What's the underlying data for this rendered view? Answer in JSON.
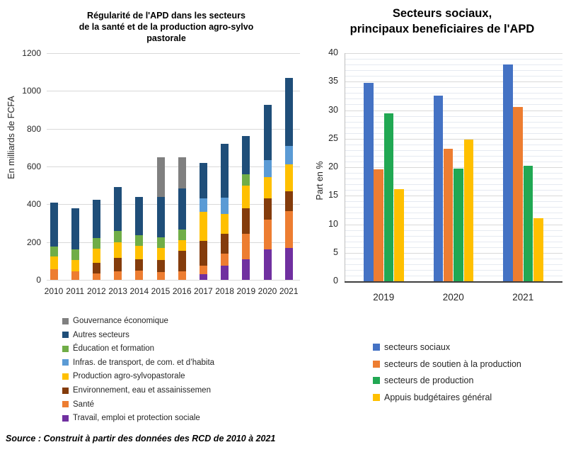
{
  "source_note": "Source : Construit à partir des données des RCD de 2010 à 2021",
  "colors": {
    "background": "#FFFFFF",
    "gridline_major": "#D9D9D9",
    "gridline_minor": "#E6EAF1",
    "axis_light": "#BFBFBF",
    "axis_dark": "#3F3F3F",
    "text": "#262626"
  },
  "chart_data": [
    {
      "id": "apd-secteurs-stacked",
      "type": "bar",
      "stacked": true,
      "title": "Régularité de l'APD dans les secteurs de la santé et de la production agro-sylvo pastorale",
      "title_lines": [
        "Régularité de l'APD dans les secteurs",
        "de la santé et de la production agro-sylvo",
        "pastorale"
      ],
      "xlabel": "",
      "ylabel": "En milliards de FCFA",
      "ylim": [
        0,
        1200
      ],
      "ytick_step": 200,
      "grid": "horizontal-major",
      "legend_position": "bottom-left-vertical",
      "categories": [
        "2010",
        "2011",
        "2012",
        "2013",
        "2014",
        "2015",
        "2016",
        "2017",
        "2018",
        "2019",
        "2020",
        "2021"
      ],
      "series": [
        {
          "name": "Travail, emploi et protection sociale",
          "color": "#7030A0",
          "values": [
            0,
            0,
            0,
            0,
            0,
            0,
            0,
            30,
            75,
            110,
            160,
            170
          ]
        },
        {
          "name": "Santé",
          "color": "#ED7D31",
          "values": [
            55,
            45,
            35,
            45,
            50,
            40,
            45,
            45,
            65,
            135,
            160,
            195
          ]
        },
        {
          "name": "Environnement, eau et assainissemen",
          "color": "#843C0C",
          "values": [
            0,
            0,
            55,
            70,
            60,
            65,
            110,
            130,
            105,
            135,
            110,
            105
          ]
        },
        {
          "name": "Production agro-sylvopastorale",
          "color": "#FFC000",
          "values": [
            70,
            60,
            75,
            85,
            70,
            65,
            55,
            155,
            105,
            120,
            115,
            140
          ]
        },
        {
          "name": "Infras. de transport, de com. et d’habita",
          "color": "#5B9BD5",
          "values": [
            0,
            0,
            0,
            0,
            0,
            0,
            0,
            70,
            85,
            0,
            90,
            100
          ]
        },
        {
          "name": "Éducation et formation",
          "color": "#70AD47",
          "values": [
            50,
            55,
            55,
            60,
            55,
            55,
            55,
            0,
            0,
            60,
            0,
            0
          ]
        },
        {
          "name": "Autres secteurs",
          "color": "#1F4E79",
          "values": [
            235,
            220,
            205,
            230,
            205,
            215,
            220,
            190,
            285,
            200,
            290,
            360
          ]
        },
        {
          "name": "Gouvernance économique",
          "color": "#808080",
          "values": [
            0,
            0,
            0,
            0,
            0,
            210,
            165,
            0,
            0,
            0,
            0,
            0
          ]
        }
      ],
      "legend_order": [
        7,
        6,
        5,
        4,
        3,
        2,
        1,
        0
      ],
      "totals": [
        410,
        380,
        425,
        490,
        440,
        650,
        650,
        620,
        720,
        760,
        925,
        1070
      ]
    },
    {
      "id": "secteurs-sociaux-grouped",
      "type": "bar",
      "stacked": false,
      "title": "Secteurs sociaux, principaux beneficiaires de l'APD",
      "title_lines": [
        "Secteurs sociaux,",
        "principaux beneficiaires de l'APD"
      ],
      "xlabel": "",
      "ylabel": "Part en %",
      "ylim": [
        0,
        40
      ],
      "ytick_step": 5,
      "minor_unit": 1,
      "grid": "horizontal-minor",
      "legend_position": "bottom-left-vertical",
      "categories": [
        "2019",
        "2020",
        "2021"
      ],
      "series": [
        {
          "name": "secteurs sociaux",
          "color": "#4472C4",
          "values": [
            34.8,
            32.6,
            38.0
          ]
        },
        {
          "name": "secteurs de soutien à la production",
          "color": "#ED7D31",
          "values": [
            19.6,
            23.2,
            30.5
          ]
        },
        {
          "name": "secteurs de production",
          "color": "#21A853",
          "values": [
            29.4,
            19.7,
            20.3
          ]
        },
        {
          "name": "Appuis budgétaires général",
          "color": "#FFC000",
          "values": [
            16.2,
            24.8,
            11.1
          ]
        }
      ],
      "legend_order": [
        0,
        1,
        2,
        3
      ]
    }
  ]
}
